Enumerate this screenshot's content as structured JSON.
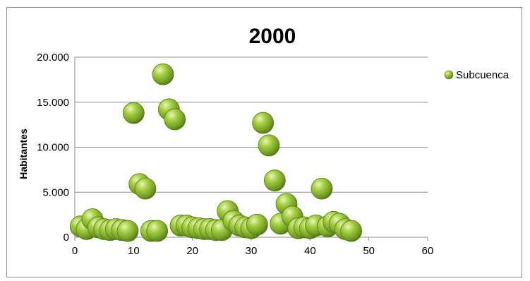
{
  "chart_data": {
    "type": "scatter",
    "title": "2000",
    "xlabel": "",
    "ylabel": "Habitantes",
    "xlim": [
      0,
      60
    ],
    "ylim": [
      0,
      20000
    ],
    "x_ticks": [
      0,
      10,
      20,
      30,
      40,
      50,
      60
    ],
    "x_tick_labels": [
      "0",
      "10",
      "20",
      "30",
      "40",
      "50",
      "60"
    ],
    "y_ticks": [
      0,
      5000,
      10000,
      15000,
      20000
    ],
    "y_tick_labels": [
      "0",
      "5.000",
      "10.000",
      "15.000",
      "20.000"
    ],
    "grid": "horizontal",
    "legend_position": "right",
    "marker_color": "#7ca02e",
    "series": [
      {
        "name": "Subcuenca",
        "points": [
          [
            1,
            1200
          ],
          [
            2,
            900
          ],
          [
            3,
            2000
          ],
          [
            4,
            1100
          ],
          [
            5,
            900
          ],
          [
            6,
            800
          ],
          [
            7,
            900
          ],
          [
            8,
            800
          ],
          [
            9,
            700
          ],
          [
            10,
            13800
          ],
          [
            11,
            5900
          ],
          [
            12,
            5400
          ],
          [
            13,
            700
          ],
          [
            14,
            700
          ],
          [
            15,
            18100
          ],
          [
            16,
            14200
          ],
          [
            17,
            13100
          ],
          [
            18,
            1300
          ],
          [
            19,
            1300
          ],
          [
            20,
            1100
          ],
          [
            21,
            1000
          ],
          [
            22,
            900
          ],
          [
            23,
            900
          ],
          [
            24,
            800
          ],
          [
            25,
            800
          ],
          [
            26,
            2900
          ],
          [
            27,
            1800
          ],
          [
            28,
            1300
          ],
          [
            29,
            1100
          ],
          [
            30,
            1000
          ],
          [
            31,
            1400
          ],
          [
            32,
            12700
          ],
          [
            33,
            10200
          ],
          [
            34,
            6300
          ],
          [
            35,
            1500
          ],
          [
            36,
            3700
          ],
          [
            37,
            2300
          ],
          [
            38,
            1000
          ],
          [
            39,
            1100
          ],
          [
            40,
            1000
          ],
          [
            41,
            1300
          ],
          [
            42,
            5400
          ],
          [
            43,
            1200
          ],
          [
            44,
            1700
          ],
          [
            45,
            1500
          ],
          [
            46,
            900
          ],
          [
            47,
            700
          ]
        ]
      }
    ]
  }
}
